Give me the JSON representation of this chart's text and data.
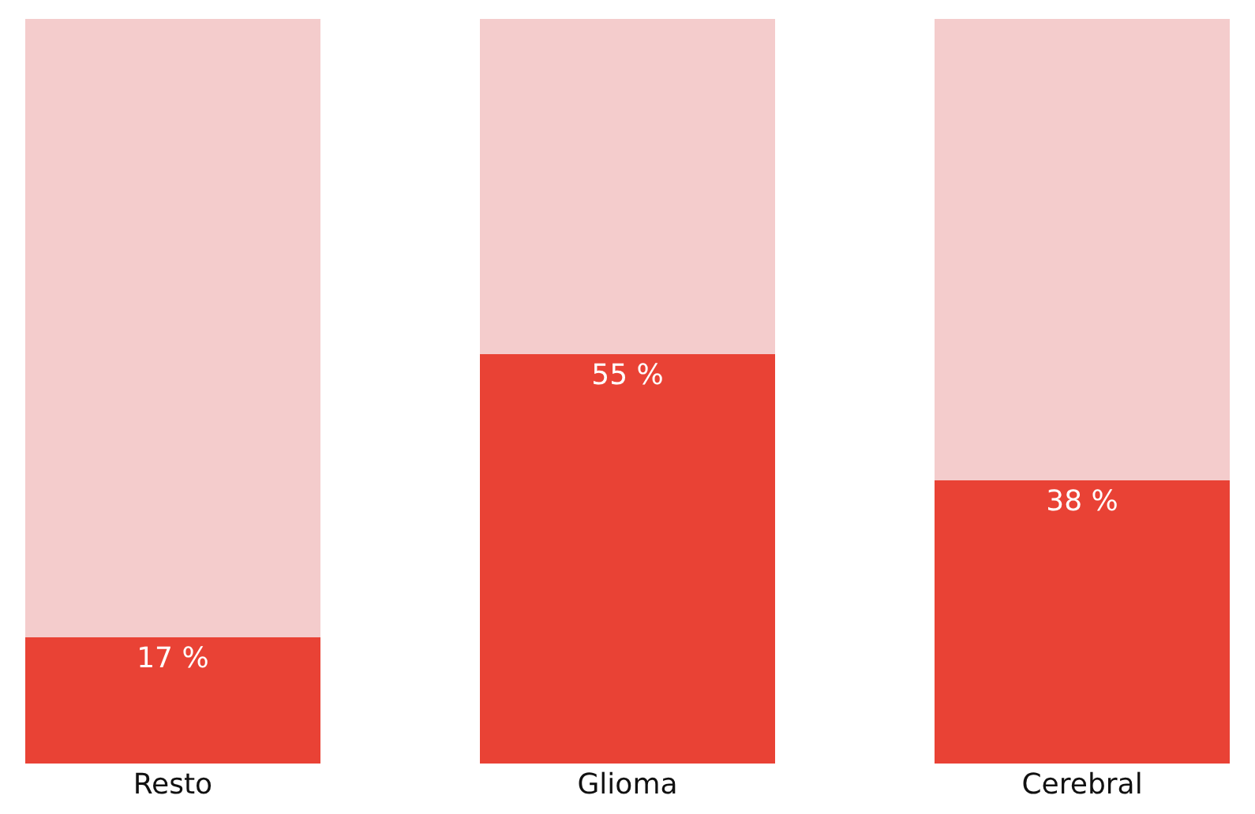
{
  "chart_data": {
    "type": "bar",
    "stacked": true,
    "categories": [
      "Resto",
      "Glioma",
      "Cerebral"
    ],
    "series": [
      {
        "color": "#e94235",
        "values": [
          17,
          55,
          38
        ],
        "value_labels": [
          "17 %",
          "55 %",
          "38 %"
        ]
      },
      {
        "color": "#f4cccc",
        "values": [
          83,
          45,
          62
        ]
      }
    ],
    "ylim": [
      0,
      100
    ],
    "tick_labels": "x"
  }
}
